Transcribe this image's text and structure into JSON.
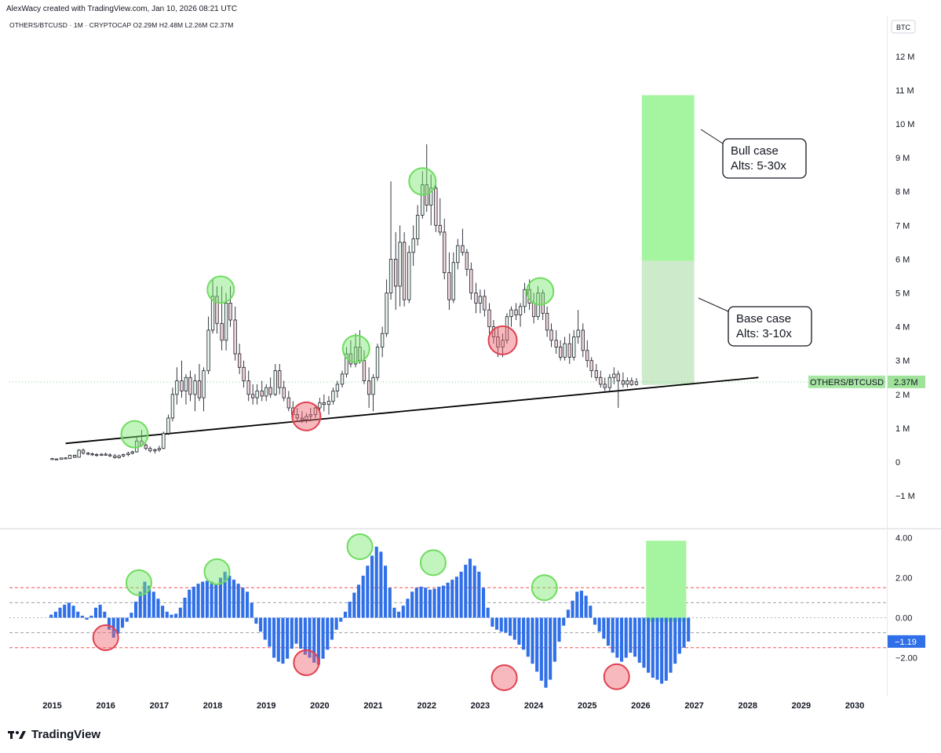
{
  "header": {
    "credit": "AlexWacy created with TradingView.com, Jan 10, 2026 08:21 UTC",
    "symbol_line": "OTHERS/BTCUSD · 1M · CRYPTOCAP  O2.29M  H2.48M  L2.26M  C2.37M"
  },
  "brand": {
    "logo_text": "TradingView"
  },
  "chart_data": [
    {
      "type": "candlestick",
      "title": "",
      "symbol": "OTHERS/BTCUSD",
      "timeframe": "1M",
      "exchange": "CRYPTOCAP",
      "ohlc": {
        "open": "O2.29M",
        "high": "H2.48M",
        "low": "L2.26M",
        "close": "C2.37M"
      },
      "unit_label": "BTC",
      "last_price_label": "2.37M",
      "last_price": 2.37,
      "y_ticks": [
        "−1 M",
        "0",
        "1 M",
        "2 M",
        "3 M",
        "4 M",
        "5 M",
        "6 M",
        "7 M",
        "8 M",
        "9 M",
        "10 M",
        "11 M",
        "12 M"
      ],
      "y_tick_values": [
        -1,
        0,
        1,
        2,
        3,
        4,
        5,
        6,
        7,
        8,
        9,
        10,
        11,
        12
      ],
      "x_ticks": [
        "2015",
        "2016",
        "2017",
        "2018",
        "2019",
        "2020",
        "2021",
        "2022",
        "2023",
        "2024",
        "2025",
        "2026",
        "2027",
        "2028",
        "2029",
        "2030"
      ],
      "ylim": [
        -1.3,
        12.5
      ],
      "xlim": [
        2014.2,
        2030.6
      ],
      "trendline": {
        "from": [
          2015.25,
          0.55
        ],
        "to": [
          2028.2,
          2.5
        ]
      },
      "targets": [
        {
          "label_line1": "Bull case",
          "label_line2": "Alts: 5-30x",
          "y_low": 5.95,
          "y_high": 10.85,
          "color": "#a5f5a0"
        },
        {
          "label_line1": "Base case",
          "label_line2": "Alts: 3-10x",
          "y_low": 2.28,
          "y_high": 5.95,
          "color": "#cdebcb"
        }
      ],
      "target_x_range": [
        2026.02,
        2027.0
      ],
      "candles": [
        [
          2015.0,
          0.1,
          0.12,
          0.07,
          0.09
        ],
        [
          2015.08,
          0.09,
          0.11,
          0.06,
          0.08
        ],
        [
          2015.17,
          0.08,
          0.13,
          0.07,
          0.12
        ],
        [
          2015.25,
          0.12,
          0.14,
          0.09,
          0.1
        ],
        [
          2015.33,
          0.1,
          0.22,
          0.09,
          0.2
        ],
        [
          2015.42,
          0.2,
          0.22,
          0.12,
          0.14
        ],
        [
          2015.5,
          0.14,
          0.38,
          0.13,
          0.35
        ],
        [
          2015.58,
          0.35,
          0.4,
          0.22,
          0.26
        ],
        [
          2015.67,
          0.26,
          0.3,
          0.2,
          0.24
        ],
        [
          2015.75,
          0.24,
          0.28,
          0.18,
          0.22
        ],
        [
          2015.83,
          0.22,
          0.26,
          0.16,
          0.2
        ],
        [
          2015.92,
          0.2,
          0.26,
          0.18,
          0.23
        ],
        [
          2016.0,
          0.23,
          0.28,
          0.19,
          0.21
        ],
        [
          2016.08,
          0.21,
          0.26,
          0.15,
          0.18
        ],
        [
          2016.17,
          0.18,
          0.24,
          0.1,
          0.13
        ],
        [
          2016.25,
          0.13,
          0.22,
          0.1,
          0.18
        ],
        [
          2016.33,
          0.18,
          0.25,
          0.14,
          0.22
        ],
        [
          2016.42,
          0.22,
          0.3,
          0.17,
          0.26
        ],
        [
          2016.5,
          0.26,
          0.34,
          0.22,
          0.3
        ],
        [
          2016.58,
          0.3,
          0.78,
          0.28,
          0.62
        ],
        [
          2016.67,
          0.62,
          0.95,
          0.45,
          0.5
        ],
        [
          2016.75,
          0.5,
          0.55,
          0.35,
          0.4
        ],
        [
          2016.83,
          0.4,
          0.46,
          0.28,
          0.33
        ],
        [
          2016.92,
          0.33,
          0.4,
          0.25,
          0.36
        ],
        [
          2017.0,
          0.36,
          0.48,
          0.3,
          0.4
        ],
        [
          2017.08,
          0.4,
          0.9,
          0.38,
          0.85
        ],
        [
          2017.17,
          0.85,
          1.4,
          0.8,
          1.3
        ],
        [
          2017.25,
          1.3,
          2.2,
          1.2,
          2.0
        ],
        [
          2017.33,
          2.0,
          2.8,
          1.7,
          2.4
        ],
        [
          2017.42,
          2.4,
          3.0,
          1.9,
          2.1
        ],
        [
          2017.5,
          2.1,
          2.6,
          1.7,
          2.5
        ],
        [
          2017.58,
          2.5,
          2.7,
          1.8,
          2.0
        ],
        [
          2017.67,
          2.0,
          2.6,
          1.5,
          2.4
        ],
        [
          2017.75,
          2.4,
          2.9,
          1.8,
          1.9
        ],
        [
          2017.83,
          1.9,
          2.8,
          1.5,
          2.7
        ],
        [
          2017.92,
          2.7,
          4.3,
          2.6,
          3.9
        ],
        [
          2018.0,
          3.9,
          5.4,
          3.8,
          4.9
        ],
        [
          2018.08,
          4.9,
          5.2,
          3.8,
          4.1
        ],
        [
          2018.17,
          4.1,
          5.2,
          3.3,
          3.6
        ],
        [
          2018.25,
          3.6,
          5.0,
          3.3,
          4.7
        ],
        [
          2018.33,
          4.7,
          5.2,
          4.0,
          4.2
        ],
        [
          2018.42,
          4.2,
          4.6,
          3.0,
          3.2
        ],
        [
          2018.5,
          3.2,
          3.5,
          2.6,
          2.8
        ],
        [
          2018.58,
          2.8,
          3.0,
          2.2,
          2.4
        ],
        [
          2018.67,
          2.4,
          2.7,
          1.8,
          2.0
        ],
        [
          2018.75,
          2.0,
          2.3,
          1.7,
          1.9
        ],
        [
          2018.83,
          1.9,
          2.3,
          1.7,
          2.1
        ],
        [
          2018.92,
          2.1,
          2.4,
          1.8,
          1.95
        ],
        [
          2019.0,
          1.95,
          2.3,
          1.8,
          2.2
        ],
        [
          2019.08,
          2.2,
          2.5,
          1.9,
          2.0
        ],
        [
          2019.17,
          2.0,
          2.9,
          1.95,
          2.7
        ],
        [
          2019.25,
          2.7,
          2.9,
          2.0,
          2.2
        ],
        [
          2019.33,
          2.2,
          2.4,
          1.8,
          1.9
        ],
        [
          2019.42,
          1.9,
          2.1,
          1.5,
          1.6
        ],
        [
          2019.5,
          1.6,
          1.8,
          1.3,
          1.4
        ],
        [
          2019.58,
          1.4,
          1.6,
          1.2,
          1.3
        ],
        [
          2019.67,
          1.3,
          1.5,
          1.15,
          1.25
        ],
        [
          2019.75,
          1.25,
          1.45,
          1.15,
          1.35
        ],
        [
          2019.83,
          1.35,
          1.6,
          1.2,
          1.4
        ],
        [
          2019.92,
          1.4,
          1.7,
          1.3,
          1.6
        ],
        [
          2020.0,
          1.6,
          1.9,
          1.5,
          1.75
        ],
        [
          2020.08,
          1.75,
          2.0,
          1.5,
          1.7
        ],
        [
          2020.17,
          1.7,
          1.95,
          1.4,
          1.8
        ],
        [
          2020.25,
          1.8,
          2.2,
          1.7,
          2.1
        ],
        [
          2020.33,
          2.1,
          2.4,
          1.9,
          2.3
        ],
        [
          2020.42,
          2.3,
          2.7,
          2.2,
          2.6
        ],
        [
          2020.5,
          2.6,
          3.4,
          2.5,
          3.2
        ],
        [
          2020.58,
          3.2,
          3.6,
          2.8,
          2.9
        ],
        [
          2020.67,
          2.9,
          3.8,
          2.8,
          3.4
        ],
        [
          2020.75,
          3.4,
          3.9,
          2.9,
          3.0
        ],
        [
          2020.83,
          3.0,
          3.3,
          2.3,
          2.4
        ],
        [
          2020.92,
          2.4,
          2.8,
          1.6,
          2.0
        ],
        [
          2021.0,
          2.0,
          2.6,
          1.5,
          2.5
        ],
        [
          2021.08,
          2.5,
          3.5,
          2.4,
          3.4
        ],
        [
          2021.17,
          3.4,
          4.0,
          3.1,
          3.8
        ],
        [
          2021.25,
          3.8,
          5.4,
          3.7,
          5.0
        ],
        [
          2021.33,
          5.0,
          8.3,
          4.8,
          6.0
        ],
        [
          2021.42,
          6.0,
          6.8,
          4.5,
          5.2
        ],
        [
          2021.5,
          5.2,
          7.0,
          4.6,
          6.5
        ],
        [
          2021.58,
          6.5,
          6.8,
          4.6,
          4.8
        ],
        [
          2021.67,
          4.8,
          6.4,
          4.7,
          6.2
        ],
        [
          2021.75,
          6.2,
          7.0,
          5.8,
          6.6
        ],
        [
          2021.83,
          6.6,
          7.6,
          6.4,
          7.3
        ],
        [
          2021.92,
          7.3,
          8.6,
          7.2,
          8.2
        ],
        [
          2022.0,
          8.2,
          9.4,
          7.4,
          7.6
        ],
        [
          2022.08,
          7.6,
          8.5,
          7.0,
          8.1
        ],
        [
          2022.17,
          8.1,
          8.3,
          6.8,
          7.0
        ],
        [
          2022.25,
          7.0,
          7.8,
          6.7,
          6.8
        ],
        [
          2022.33,
          6.8,
          7.2,
          5.4,
          5.6
        ],
        [
          2022.42,
          5.6,
          6.2,
          4.5,
          4.8
        ],
        [
          2022.5,
          4.8,
          6.2,
          4.7,
          5.9
        ],
        [
          2022.58,
          5.9,
          6.6,
          5.7,
          6.4
        ],
        [
          2022.67,
          6.4,
          6.9,
          6.1,
          6.2
        ],
        [
          2022.75,
          6.2,
          6.3,
          5.5,
          5.7
        ],
        [
          2022.83,
          5.7,
          5.9,
          4.8,
          5.0
        ],
        [
          2022.92,
          5.0,
          5.3,
          4.4,
          4.7
        ],
        [
          2023.0,
          4.7,
          5.1,
          4.4,
          4.9
        ],
        [
          2023.08,
          4.9,
          5.1,
          4.3,
          4.5
        ],
        [
          2023.17,
          4.5,
          4.7,
          3.8,
          4.0
        ],
        [
          2023.25,
          4.0,
          4.2,
          3.5,
          3.7
        ],
        [
          2023.33,
          3.7,
          4.0,
          3.1,
          3.4
        ],
        [
          2023.42,
          3.4,
          3.8,
          3.1,
          3.6
        ],
        [
          2023.5,
          3.6,
          4.4,
          3.5,
          4.3
        ],
        [
          2023.58,
          4.3,
          4.6,
          4.0,
          4.5
        ],
        [
          2023.67,
          4.5,
          4.7,
          4.2,
          4.35
        ],
        [
          2023.75,
          4.35,
          4.7,
          4.0,
          4.6
        ],
        [
          2023.83,
          4.6,
          5.3,
          4.4,
          5.1
        ],
        [
          2023.92,
          5.1,
          5.4,
          4.5,
          4.7
        ],
        [
          2024.0,
          4.7,
          5.0,
          4.1,
          4.3
        ],
        [
          2024.08,
          4.3,
          5.2,
          4.2,
          5.0
        ],
        [
          2024.17,
          5.0,
          5.1,
          4.2,
          4.4
        ],
        [
          2024.25,
          4.4,
          4.6,
          3.7,
          3.9
        ],
        [
          2024.33,
          3.9,
          4.1,
          3.4,
          3.6
        ],
        [
          2024.42,
          3.6,
          3.9,
          3.2,
          3.4
        ],
        [
          2024.5,
          3.4,
          3.6,
          3.0,
          3.1
        ],
        [
          2024.58,
          3.1,
          3.7,
          3.0,
          3.5
        ],
        [
          2024.67,
          3.5,
          3.8,
          2.9,
          3.1
        ],
        [
          2024.75,
          3.1,
          3.9,
          3.0,
          3.7
        ],
        [
          2024.83,
          3.7,
          4.5,
          3.5,
          3.9
        ],
        [
          2024.92,
          3.9,
          4.1,
          3.1,
          3.3
        ],
        [
          2025.0,
          3.3,
          3.6,
          2.8,
          3.0
        ],
        [
          2025.08,
          3.0,
          3.1,
          2.5,
          2.7
        ],
        [
          2025.17,
          2.7,
          2.9,
          2.4,
          2.5
        ],
        [
          2025.25,
          2.5,
          2.7,
          2.2,
          2.3
        ],
        [
          2025.33,
          2.3,
          2.5,
          2.1,
          2.2
        ],
        [
          2025.42,
          2.2,
          2.6,
          2.1,
          2.5
        ],
        [
          2025.5,
          2.5,
          2.8,
          2.3,
          2.6
        ],
        [
          2025.58,
          2.6,
          2.7,
          1.6,
          2.4
        ],
        [
          2025.67,
          2.4,
          2.65,
          2.2,
          2.3
        ],
        [
          2025.75,
          2.3,
          2.5,
          2.2,
          2.4
        ],
        [
          2025.83,
          2.4,
          2.5,
          2.25,
          2.29
        ],
        [
          2025.92,
          2.29,
          2.48,
          2.26,
          2.37
        ]
      ],
      "markers": [
        {
          "x": 2016.54,
          "y": 0.82,
          "kind": "high"
        },
        {
          "x": 2018.15,
          "y": 5.1,
          "kind": "high"
        },
        {
          "x": 2019.75,
          "y": 1.35,
          "kind": "low"
        },
        {
          "x": 2020.68,
          "y": 3.35,
          "kind": "high"
        },
        {
          "x": 2021.92,
          "y": 8.3,
          "kind": "high"
        },
        {
          "x": 2023.42,
          "y": 3.6,
          "kind": "low"
        },
        {
          "x": 2024.12,
          "y": 5.05,
          "kind": "high"
        }
      ]
    },
    {
      "type": "bar",
      "title": "",
      "y_ticks": [
        "−2.00",
        "0.00",
        "2.00",
        "4.00"
      ],
      "y_tick_values": [
        -2,
        0,
        2,
        4
      ],
      "ylim": [
        -4.3,
        4.9
      ],
      "last_value_label": "−1.19",
      "last_value": -1.19,
      "level_lines": [
        {
          "y": 1.5,
          "color": "#f05454",
          "style": "dashed"
        },
        {
          "y": 0.75,
          "color": "#9aa0a8",
          "style": "dashed"
        },
        {
          "y": -0.75,
          "color": "#9aa0a8",
          "style": "dashed"
        },
        {
          "y": -1.5,
          "color": "#f05454",
          "style": "dashed"
        }
      ],
      "projection_box": {
        "x_from": 2026.1,
        "x_to": 2026.85,
        "y_low": -0.2,
        "y_high": 3.85,
        "color": "#a5f5a0"
      },
      "bar_color": "#2f6fe8",
      "values": [
        0.15,
        0.3,
        0.5,
        0.65,
        0.75,
        0.6,
        0.3,
        0.1,
        -0.1,
        0.1,
        0.5,
        0.65,
        0.3,
        -0.6,
        -1.0,
        -0.8,
        -0.5,
        -0.2,
        0.25,
        0.8,
        1.3,
        1.8,
        1.6,
        1.3,
        0.95,
        0.6,
        0.3,
        0.15,
        0.2,
        0.5,
        1.0,
        1.4,
        1.55,
        1.7,
        1.8,
        1.85,
        1.8,
        1.7,
        2.0,
        2.3,
        2.1,
        1.9,
        1.7,
        1.5,
        1.3,
        0.75,
        -0.3,
        -0.7,
        -1.1,
        -1.45,
        -2.0,
        -2.2,
        -2.3,
        -2.05,
        -1.55,
        -1.3,
        -1.55,
        -1.85,
        -2.0,
        -2.25,
        -2.35,
        -2.05,
        -1.6,
        -1.1,
        -0.6,
        -0.2,
        0.3,
        0.8,
        1.25,
        1.65,
        2.1,
        2.6,
        3.1,
        3.55,
        3.3,
        2.6,
        1.5,
        0.5,
        0.3,
        0.6,
        0.95,
        1.3,
        1.5,
        1.55,
        1.5,
        1.4,
        1.45,
        1.55,
        1.6,
        1.75,
        1.9,
        2.05,
        2.3,
        2.65,
        2.95,
        2.6,
        2.3,
        1.5,
        0.5,
        -0.45,
        -0.6,
        -0.7,
        -0.75,
        -0.9,
        -1.1,
        -1.35,
        -1.6,
        -1.95,
        -2.3,
        -2.7,
        -3.15,
        -3.5,
        -3.1,
        -2.2,
        -1.2,
        -0.4,
        0.4,
        0.85,
        1.3,
        1.35,
        1.1,
        0.6,
        -0.35,
        -0.7,
        -1.05,
        -1.4,
        -1.75,
        -2.0,
        -2.2,
        -2.0,
        -1.75,
        -1.95,
        -2.25,
        -2.5,
        -2.75,
        -3.0,
        -3.1,
        -3.3,
        -3.15,
        -2.75,
        -2.3,
        -1.8,
        -1.5,
        -1.19
      ],
      "x_start": 2014.98,
      "x_step": 0.0833,
      "markers": [
        {
          "x": 2016.62,
          "y": 1.75,
          "kind": "high"
        },
        {
          "x": 2018.08,
          "y": 2.3,
          "kind": "high"
        },
        {
          "x": 2020.75,
          "y": 3.55,
          "kind": "high"
        },
        {
          "x": 2022.12,
          "y": 2.75,
          "kind": "high"
        },
        {
          "x": 2024.2,
          "y": 1.5,
          "kind": "high"
        },
        {
          "x": 2016.0,
          "y": -1.0,
          "kind": "low"
        },
        {
          "x": 2019.75,
          "y": -2.25,
          "kind": "low"
        },
        {
          "x": 2023.45,
          "y": -3.0,
          "kind": "low"
        },
        {
          "x": 2025.55,
          "y": -2.95,
          "kind": "low"
        }
      ]
    }
  ]
}
